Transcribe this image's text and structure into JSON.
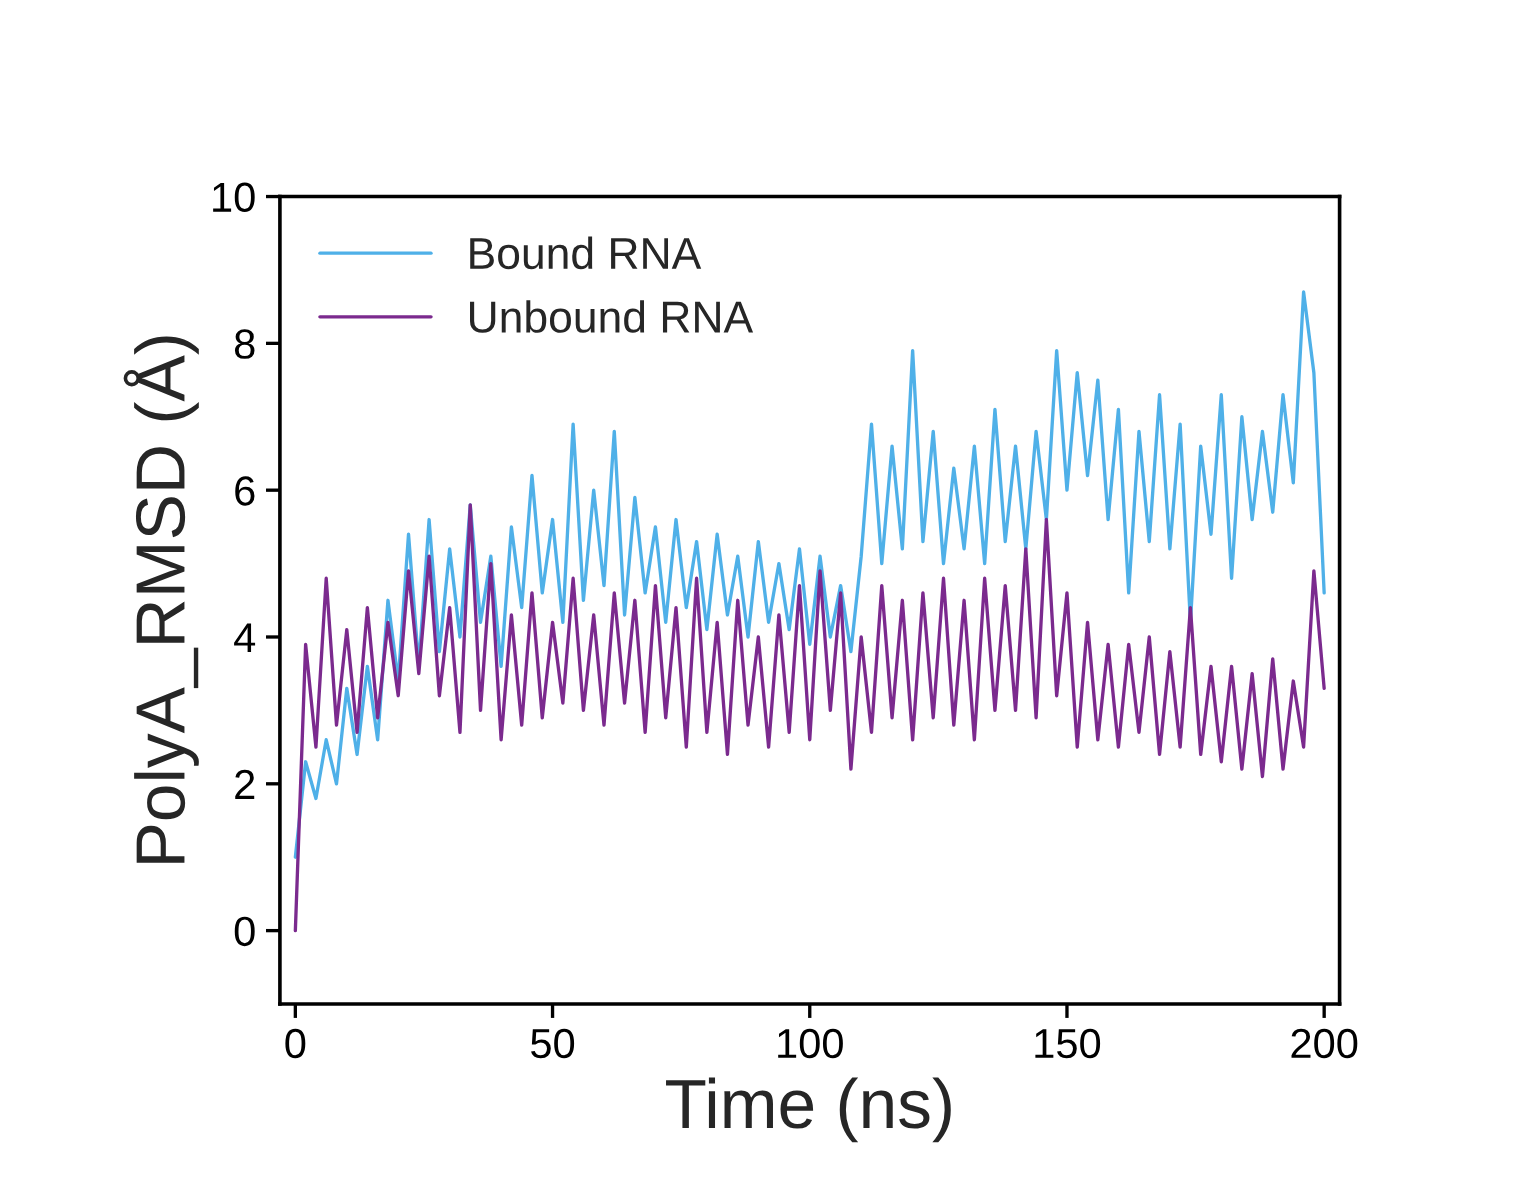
{
  "chart_data": {
    "type": "line",
    "xlabel": "Time (ns)",
    "ylabel": "PolyA_RMSD (Å)",
    "x": [
      0,
      2,
      4,
      6,
      8,
      10,
      12,
      14,
      16,
      18,
      20,
      22,
      24,
      26,
      28,
      30,
      32,
      34,
      36,
      38,
      40,
      42,
      44,
      46,
      48,
      50,
      52,
      54,
      56,
      58,
      60,
      62,
      64,
      66,
      68,
      70,
      72,
      74,
      76,
      78,
      80,
      82,
      84,
      86,
      88,
      90,
      92,
      94,
      96,
      98,
      100,
      102,
      104,
      106,
      108,
      110,
      112,
      114,
      116,
      118,
      120,
      122,
      124,
      126,
      128,
      130,
      132,
      134,
      136,
      138,
      140,
      142,
      144,
      146,
      148,
      150,
      152,
      154,
      156,
      158,
      160,
      162,
      164,
      166,
      168,
      170,
      172,
      174,
      176,
      178,
      180,
      182,
      184,
      186,
      188,
      190,
      192,
      194,
      196,
      198,
      200
    ],
    "series": [
      {
        "name": "Bound RNA",
        "color": "#4fb0e8",
        "values": [
          1.0,
          2.3,
          1.8,
          2.6,
          2.0,
          3.3,
          2.4,
          3.6,
          2.6,
          4.5,
          3.4,
          5.4,
          3.6,
          5.6,
          3.8,
          5.2,
          4.0,
          5.8,
          4.2,
          5.1,
          3.6,
          5.5,
          4.4,
          6.2,
          4.6,
          5.6,
          4.2,
          6.9,
          4.5,
          6.0,
          4.7,
          6.8,
          4.3,
          5.9,
          4.6,
          5.5,
          4.2,
          5.6,
          4.4,
          5.3,
          4.1,
          5.4,
          4.3,
          5.1,
          4.0,
          5.3,
          4.2,
          5.0,
          4.1,
          5.2,
          3.9,
          5.1,
          4.0,
          4.7,
          3.8,
          5.1,
          6.9,
          5.0,
          6.6,
          5.2,
          7.9,
          5.3,
          6.8,
          5.0,
          6.3,
          5.2,
          6.6,
          5.0,
          7.1,
          5.3,
          6.6,
          5.2,
          6.8,
          5.6,
          7.9,
          6.0,
          7.6,
          6.2,
          7.5,
          5.6,
          7.1,
          4.6,
          6.8,
          5.3,
          7.3,
          5.2,
          6.9,
          4.2,
          6.6,
          5.4,
          7.3,
          4.8,
          7.0,
          5.6,
          6.8,
          5.7,
          7.3,
          6.1,
          8.7,
          7.6,
          4.6
        ]
      },
      {
        "name": "Unbound RNA",
        "color": "#7b2a8e",
        "values": [
          0.0,
          3.9,
          2.5,
          4.8,
          2.8,
          4.1,
          2.7,
          4.4,
          2.9,
          4.2,
          3.2,
          4.9,
          3.5,
          5.1,
          3.2,
          4.4,
          2.7,
          5.8,
          3.0,
          5.0,
          2.6,
          4.3,
          2.8,
          4.6,
          2.9,
          4.2,
          3.1,
          4.8,
          3.0,
          4.3,
          2.8,
          4.6,
          3.1,
          4.5,
          2.7,
          4.7,
          2.9,
          4.4,
          2.5,
          4.8,
          2.7,
          4.2,
          2.4,
          4.5,
          2.8,
          4.0,
          2.5,
          4.3,
          2.7,
          4.7,
          2.6,
          4.9,
          3.0,
          4.6,
          2.2,
          4.0,
          2.7,
          4.7,
          2.9,
          4.5,
          2.6,
          4.6,
          2.9,
          4.8,
          2.8,
          4.5,
          2.6,
          4.8,
          3.0,
          4.7,
          3.0,
          5.2,
          2.9,
          5.6,
          3.2,
          4.6,
          2.5,
          4.2,
          2.6,
          3.9,
          2.5,
          3.9,
          2.7,
          4.0,
          2.4,
          3.8,
          2.5,
          4.4,
          2.4,
          3.6,
          2.3,
          3.6,
          2.2,
          3.5,
          2.1,
          3.7,
          2.2,
          3.4,
          2.5,
          4.9,
          3.3
        ]
      }
    ],
    "xlim": [
      -3,
      203
    ],
    "xticks": [
      0,
      50,
      100,
      150,
      200
    ],
    "ylim": [
      -1,
      10
    ],
    "yticks": [
      0,
      2,
      4,
      6,
      8,
      10
    ],
    "legend": "top left",
    "grid": false
  }
}
